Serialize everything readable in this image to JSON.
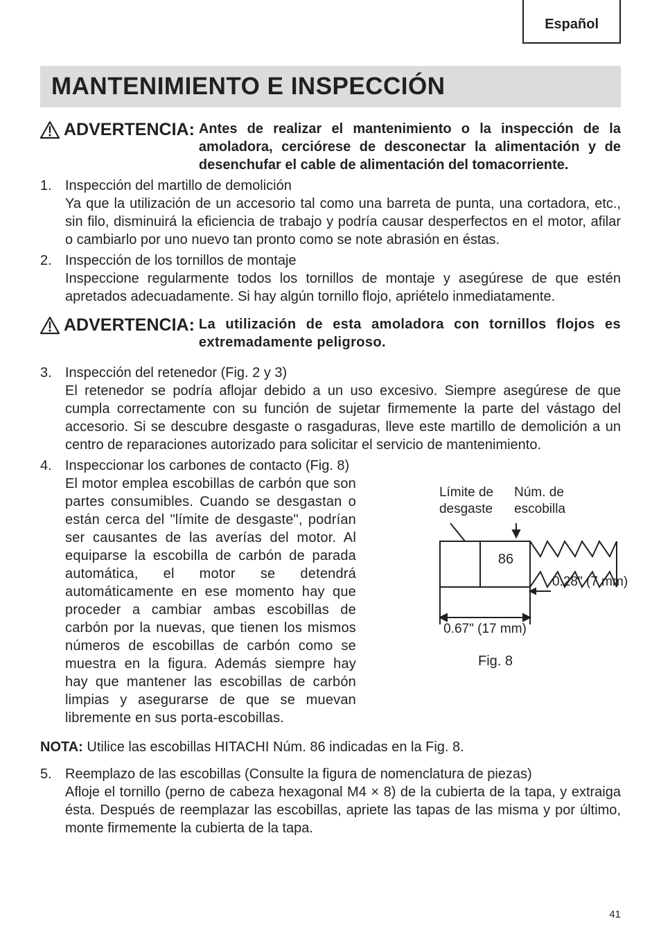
{
  "language_label": "Español",
  "main_title": "MANTENIMIENTO E INSPECCIÓN",
  "warning1": {
    "label": "ADVERTENCIA:",
    "text": "Antes de realizar el mantenimiento o la inspección de la amoladora, cerciórese de desconectar la alimentación y de desenchufar el cable de alimentación del tomacorriente."
  },
  "items12": [
    {
      "num": "1.",
      "title": "Inspección del martillo de demolición",
      "desc": "Ya que la utilización de un accesorio tal como una barreta de punta, una cortadora, etc., sin filo, disminuirá la eficiencia de trabajo y podría causar desperfectos en el motor, afilar o cambiarlo por uno nuevo tan pronto como se note abrasión en éstas."
    },
    {
      "num": "2.",
      "title": "Inspección de los tornillos de montaje",
      "desc": "Inspeccione regularmente todos los tornillos de montaje y asegúrese de que estén apretados adecuadamente. Si hay algún tornillo flojo, apriételo inmediatamente."
    }
  ],
  "warning2": {
    "label": "ADVERTENCIA:",
    "text": "La utilización de esta amoladora con tornillos flojos es extremadamente peligroso."
  },
  "item3": {
    "num": "3.",
    "title": "Inspección del retenedor (Fig. 2 y 3)",
    "desc": "El retenedor se podría aflojar debido a un uso excesivo. Siempre asegúrese de que cumpla correctamente con su función de sujetar firmemente la parte del vástago del accesorio. Si se descubre desgaste o rasgaduras, lleve este martillo de demolición a un centro de reparaciones autorizado para solicitar el servicio de mantenimiento."
  },
  "item4": {
    "num": "4.",
    "title": "Inspeccionar los carbones de contacto (Fig. 8)",
    "desc": "El motor emplea escobillas de carbón que son partes consumibles. Cuando se desgastan o están cerca del \"límite de desgaste\", podrían ser causantes de las averías del motor. Al equiparse la escobilla de carbón de parada automática, el motor se detendrá automáticamente en ese momento hay que proceder a cambiar ambas escobillas de carbón por la nuevas, que tienen los mismos números de escobillas de carbón como se muestra en la figura. Además siempre hay hay que mantener las escobillas de carbón limpias y asegurarse de que se muevan libremente en sus porta-escobillas."
  },
  "figure": {
    "label_left": "Límite de\ndesgaste",
    "label_right": "Núm. de\nescobilla",
    "brush_num": "86",
    "dim_small": "0.28\" (7 mm)",
    "dim_large": "0.67\" (17 mm)",
    "caption": "Fig. 8",
    "colors": {
      "stroke": "#231f20",
      "fill": "#ffffff"
    },
    "stroke_width": 2
  },
  "note": {
    "label": "NOTA:",
    "text": "Utilice las escobillas HITACHI Núm. 86 indicadas en la Fig. 8."
  },
  "item5": {
    "num": "5.",
    "title": "Reemplazo de las escobillas (Consulte la figura de nomenclatura de piezas)",
    "desc": "Afloje el tornillo (perno de cabeza hexagonal M4 × 8) de la cubierta de la tapa, y extraiga ésta. Después de reemplazar las escobillas, apriete las tapas de las misma y por último, monte firmemente la cubierta de la tapa."
  },
  "page_number": "41"
}
